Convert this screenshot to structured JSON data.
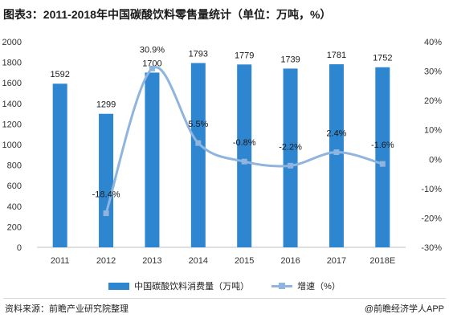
{
  "title": "图表3：2011-2018年中国碳酸饮料零售量统计（单位：万吨，%）",
  "chart_data": {
    "type": "bar",
    "title": "图表3：2011-2018年中国碳酸饮料零售量统计（单位：万吨，%）",
    "categories": [
      "2011",
      "2012",
      "2013",
      "2014",
      "2015",
      "2016",
      "2017",
      "2018E"
    ],
    "series": [
      {
        "name": "中国碳酸饮料消费量（万吨）",
        "type": "bar",
        "axis": "left",
        "color": "#2e86d1",
        "values": [
          1592,
          1299,
          1700,
          1793,
          1779,
          1739,
          1781,
          1752
        ],
        "labels": [
          "1592",
          "1299",
          "1700",
          "1793",
          "1779",
          "1739",
          "1781",
          "1752"
        ]
      },
      {
        "name": "增速（%）",
        "type": "line",
        "axis": "right",
        "color": "#8fb4de",
        "values": [
          null,
          -18.4,
          30.9,
          5.5,
          -0.8,
          -2.2,
          2.4,
          -1.6
        ],
        "labels": [
          "",
          "-18.4%",
          "30.9%",
          "5.5%",
          "-0.8%",
          "-2.2%",
          "2.4%",
          "-1.6%"
        ]
      }
    ],
    "y_left": {
      "ylim": [
        0,
        2000
      ],
      "ticks": [
        0,
        200,
        400,
        600,
        800,
        1000,
        1200,
        1400,
        1600,
        1800,
        2000
      ],
      "tick_labels": [
        "0",
        "200",
        "400",
        "600",
        "800",
        "1000",
        "1200",
        "1400",
        "1600",
        "1800",
        "2000"
      ]
    },
    "y_right": {
      "ylim": [
        -30,
        40
      ],
      "ticks": [
        -30,
        -20,
        -10,
        0,
        10,
        20,
        30,
        40
      ],
      "tick_labels": [
        "-30%",
        "-20%",
        "-10%",
        "0%",
        "10%",
        "20%",
        "30%",
        "40%"
      ]
    },
    "grid": false,
    "legend_position": "bottom"
  },
  "legend": {
    "bar_label": "中国碳酸饮料消费量（万吨）",
    "line_label": "增速（%）"
  },
  "footer": {
    "source": "资料来源：前瞻产业研究院整理",
    "brand": "@前瞻经济学人APP"
  }
}
